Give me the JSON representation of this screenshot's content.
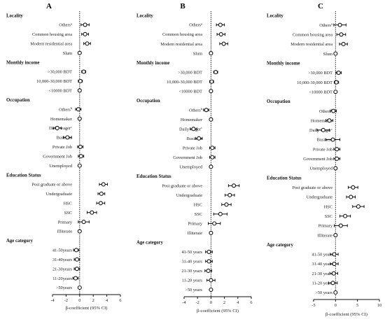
{
  "chart_data": [
    {
      "panel": "A",
      "type": "forest",
      "xlabel": "β-coefficient (95% CI)",
      "xlim": [
        -4,
        6
      ],
      "xticks": [
        -4,
        -2,
        0,
        2,
        4,
        6
      ],
      "reference_line": 0,
      "rows": [
        {
          "label": "Locality",
          "header": true
        },
        {
          "label": "Others",
          "sup": "a",
          "est": 0.8,
          "lo": 0.2,
          "hi": 1.4
        },
        {
          "label": "Common housing area",
          "est": 0.8,
          "lo": 0.3,
          "hi": 1.3
        },
        {
          "label": "Modern residential area",
          "est": 1.1,
          "lo": 0.6,
          "hi": 1.6
        },
        {
          "label": "Slum",
          "est": 0,
          "lo": 0,
          "hi": 0
        },
        {
          "label": "Monthly income",
          "header": true
        },
        {
          "label": ">30,000 BDT",
          "est": 0.6,
          "lo": 0.3,
          "hi": 0.9
        },
        {
          "label": "10,000-30,000 BDT",
          "est": 0.1,
          "lo": -0.2,
          "hi": 0.4
        },
        {
          "label": "<10000 BDT",
          "est": 0,
          "lo": 0,
          "hi": 0
        },
        {
          "label": "Occupation",
          "header": true
        },
        {
          "label": "Others",
          "sup": "b",
          "est": -0.2,
          "lo": -0.6,
          "hi": 0.2
        },
        {
          "label": "Homemaker",
          "est": 0,
          "lo": 0,
          "hi": 0
        },
        {
          "label": "Daily wager",
          "sup": "c",
          "est": -3.3,
          "lo": -3.9,
          "hi": -2.7
        },
        {
          "label": "Business",
          "est": -1.8,
          "lo": -2.4,
          "hi": -1.2
        },
        {
          "label": "Private Job",
          "est": 0.1,
          "lo": -0.3,
          "hi": 0.5
        },
        {
          "label": "Government Job",
          "est": 0.2,
          "lo": -0.2,
          "hi": 0.6
        },
        {
          "label": "Unemployed",
          "est": 0,
          "lo": 0,
          "hi": 0
        },
        {
          "label": "Education Status",
          "header": true
        },
        {
          "label": "Post graduate or above",
          "est": 3.5,
          "lo": 2.9,
          "hi": 4.1
        },
        {
          "label": "Undergraduate",
          "est": 3.2,
          "lo": 2.7,
          "hi": 3.7
        },
        {
          "label": "HSC",
          "est": 3.1,
          "lo": 2.5,
          "hi": 3.7
        },
        {
          "label": "SSC",
          "est": 1.8,
          "lo": 1.1,
          "hi": 2.5
        },
        {
          "label": "Primary",
          "est": 0.6,
          "lo": -0.2,
          "hi": 1.4
        },
        {
          "label": "Illiterate",
          "est": 0,
          "lo": 0,
          "hi": 0
        },
        {
          "label": "Age category",
          "header": true
        },
        {
          "label": "41-50years",
          "est": -0.5,
          "lo": -0.9,
          "hi": -0.1
        },
        {
          "label": "31-40years",
          "est": -0.4,
          "lo": -0.8,
          "hi": 0.0
        },
        {
          "label": "21-30years",
          "est": -0.4,
          "lo": -0.8,
          "hi": 0.0
        },
        {
          "label": "11-20years",
          "est": -0.6,
          "lo": -1.0,
          "hi": -0.2
        },
        {
          "label": ">50years",
          "est": 0,
          "lo": 0,
          "hi": 0
        }
      ]
    },
    {
      "panel": "B",
      "type": "forest",
      "xlabel": "β-coefficient (95% CI)",
      "xlim": [
        -4,
        6
      ],
      "xticks": [
        -4,
        -2,
        0,
        2,
        4,
        6
      ],
      "reference_line": 0,
      "rows": [
        {
          "label": "Locality",
          "header": true
        },
        {
          "label": "Others",
          "sup": "a",
          "est": 1.4,
          "lo": 0.8,
          "hi": 2.0
        },
        {
          "label": "Common housing area",
          "est": 1.5,
          "lo": 0.9,
          "hi": 2.1
        },
        {
          "label": "Modern residential area",
          "est": 1.9,
          "lo": 1.3,
          "hi": 2.5
        },
        {
          "label": "Slum",
          "est": 0,
          "lo": 0,
          "hi": 0
        },
        {
          "label": "Monthly income",
          "header": true
        },
        {
          "label": ">30,000 BDT",
          "est": 0.7,
          "lo": 0.4,
          "hi": 1.0
        },
        {
          "label": "10,000-30,000 BDT",
          "est": 0.1,
          "lo": -0.2,
          "hi": 0.4
        },
        {
          "label": "<10000 BDT",
          "est": 0,
          "lo": 0,
          "hi": 0
        },
        {
          "label": "Occupation",
          "header": true
        },
        {
          "label": "Others",
          "sup": "b",
          "est": -0.7,
          "lo": -1.1,
          "hi": -0.3
        },
        {
          "label": "Homemaker",
          "est": 0,
          "lo": 0,
          "hi": 0
        },
        {
          "label": "Daily wager",
          "sup": "c",
          "est": -2.6,
          "lo": -3.1,
          "hi": -2.1
        },
        {
          "label": "Business",
          "est": -1.8,
          "lo": -2.3,
          "hi": -1.3
        },
        {
          "label": "Private Job",
          "est": 0.2,
          "lo": -0.2,
          "hi": 0.6
        },
        {
          "label": "Government Job",
          "est": 0.2,
          "lo": -0.2,
          "hi": 0.6
        },
        {
          "label": "Unemployed",
          "est": 0,
          "lo": 0,
          "hi": 0
        },
        {
          "label": "Education Status",
          "header": true
        },
        {
          "label": "Post graduate or above",
          "est": 3.4,
          "lo": 2.6,
          "hi": 4.2
        },
        {
          "label": "Undergraduate",
          "est": 2.8,
          "lo": 2.1,
          "hi": 3.5
        },
        {
          "label": "HSC",
          "est": 2.3,
          "lo": 1.6,
          "hi": 3.0
        },
        {
          "label": "SSC",
          "est": 1.4,
          "lo": 0.4,
          "hi": 2.4
        },
        {
          "label": "Primary",
          "est": 0.5,
          "lo": -0.4,
          "hi": 1.4
        },
        {
          "label": "Illiterate",
          "est": 0,
          "lo": 0,
          "hi": 0
        },
        {
          "label": "Age category",
          "header": true
        },
        {
          "label": "41-50 years",
          "est": -0.3,
          "lo": -0.8,
          "hi": 0.2
        },
        {
          "label": "31-40 years",
          "est": -0.3,
          "lo": -0.8,
          "hi": 0.2
        },
        {
          "label": "21-30 years",
          "est": -0.4,
          "lo": -0.9,
          "hi": 0.1
        },
        {
          "label": "11-20 years",
          "est": 0.0,
          "lo": -0.6,
          "hi": 0.6
        },
        {
          "label": ">50 years",
          "est": 0,
          "lo": 0,
          "hi": 0
        }
      ]
    },
    {
      "panel": "C",
      "type": "forest",
      "xlabel": "β-coefficient (95% CI)",
      "xlim": [
        -5,
        10
      ],
      "xticks": [
        -5,
        0,
        5,
        10
      ],
      "reference_line": 0,
      "rows": [
        {
          "label": "Locality",
          "header": true
        },
        {
          "label": "Others",
          "sup": "a",
          "est": 1.0,
          "lo": -0.4,
          "hi": 2.4
        },
        {
          "label": "Common housing area",
          "est": 1.3,
          "lo": 0.3,
          "hi": 2.3
        },
        {
          "label": "Modern residential area",
          "est": 1.8,
          "lo": 0.9,
          "hi": 2.7
        },
        {
          "label": "Slum",
          "est": 0,
          "lo": 0,
          "hi": 0
        },
        {
          "label": "Monthly income",
          "header": true
        },
        {
          "label": ">30,000 BDT",
          "est": 0.7,
          "lo": 0.1,
          "hi": 1.3
        },
        {
          "label": "10,000-30,000 BDT",
          "est": 0.2,
          "lo": -0.3,
          "hi": 0.7
        },
        {
          "label": "<10000 BDT",
          "est": 0,
          "lo": 0,
          "hi": 0
        },
        {
          "label": "Occupation",
          "header": true
        },
        {
          "label": "Others",
          "sup": "b",
          "est": -0.5,
          "lo": -1.2,
          "hi": 0.2
        },
        {
          "label": "Homemaker",
          "est": -1.4,
          "lo": -2.2,
          "hi": -0.6
        },
        {
          "label": "Daily wager",
          "sup": "c",
          "est": -2.8,
          "lo": -4.2,
          "hi": -1.4
        },
        {
          "label": "Business",
          "est": -0.6,
          "lo": -2.2,
          "hi": 1.0
        },
        {
          "label": "Private Job",
          "est": 0.3,
          "lo": -0.4,
          "hi": 1.0
        },
        {
          "label": "Government Job",
          "est": 0.3,
          "lo": -0.4,
          "hi": 1.0
        },
        {
          "label": "Unemployed",
          "est": 0,
          "lo": 0,
          "hi": 0
        },
        {
          "label": "Education Status",
          "header": true
        },
        {
          "label": "Post graduate or above",
          "est": 4.0,
          "lo": 2.9,
          "hi": 5.1
        },
        {
          "label": "Undergraduate",
          "est": 3.5,
          "lo": 2.5,
          "hi": 4.5
        },
        {
          "label": "HSC",
          "est": 5.2,
          "lo": 3.9,
          "hi": 6.5
        },
        {
          "label": "SSC",
          "est": 2.2,
          "lo": 1.0,
          "hi": 3.4
        },
        {
          "label": "Primary",
          "est": 1.2,
          "lo": -0.3,
          "hi": 2.7
        },
        {
          "label": "Illiterate",
          "est": 0,
          "lo": 0,
          "hi": 0
        },
        {
          "label": "Age category",
          "header": true
        },
        {
          "label": "41-50 years",
          "est": -0.3,
          "lo": -1.2,
          "hi": 0.6
        },
        {
          "label": "31-40 years",
          "est": -0.3,
          "lo": -1.2,
          "hi": 0.6
        },
        {
          "label": "21-30 years",
          "est": -0.4,
          "lo": -1.3,
          "hi": 0.5
        },
        {
          "label": "11-20 years",
          "est": -0.6,
          "lo": -1.6,
          "hi": 0.4
        },
        {
          "label": ">50 years",
          "est": 0,
          "lo": 0,
          "hi": 0
        }
      ]
    }
  ]
}
